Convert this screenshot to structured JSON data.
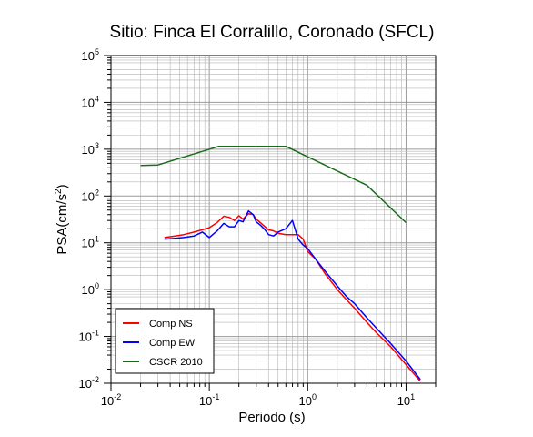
{
  "chart_data": {
    "type": "line",
    "title": "Sitio: Finca El Corralillo, Coronado (SFCL)",
    "xlabel": "Periodo (s)",
    "ylabel_main": "PSA(cm/s",
    "ylabel_sup": "2",
    "ylabel_tail": ")",
    "xscale": "log",
    "yscale": "log",
    "xlim": [
      0.01,
      20
    ],
    "ylim": [
      0.01,
      100000
    ],
    "grid": true,
    "legend_position": "bottom-left",
    "x_ticks": [
      {
        "value": 0.01,
        "base": "10",
        "exp": "-2"
      },
      {
        "value": 0.1,
        "base": "10",
        "exp": "-1"
      },
      {
        "value": 1,
        "base": "10",
        "exp": "0"
      },
      {
        "value": 10,
        "base": "10",
        "exp": "1"
      }
    ],
    "y_ticks": [
      {
        "value": 0.01,
        "base": "10",
        "exp": "-2"
      },
      {
        "value": 0.1,
        "base": "10",
        "exp": "-1"
      },
      {
        "value": 1,
        "base": "10",
        "exp": "0"
      },
      {
        "value": 10,
        "base": "10",
        "exp": "1"
      },
      {
        "value": 100,
        "base": "10",
        "exp": "2"
      },
      {
        "value": 1000,
        "base": "10",
        "exp": "3"
      },
      {
        "value": 10000,
        "base": "10",
        "exp": "4"
      },
      {
        "value": 100000,
        "base": "10",
        "exp": "5"
      }
    ],
    "series": [
      {
        "name": "Comp NS",
        "color": "#ff0000",
        "x": [
          0.035,
          0.045,
          0.055,
          0.07,
          0.085,
          0.1,
          0.12,
          0.14,
          0.16,
          0.18,
          0.2,
          0.22,
          0.25,
          0.28,
          0.3,
          0.33,
          0.36,
          0.4,
          0.45,
          0.5,
          0.6,
          0.7,
          0.8,
          0.9,
          1.0,
          1.2,
          1.5,
          2.0,
          2.5,
          3.0,
          4.0,
          5.0,
          7.0,
          10.0,
          14.0
        ],
        "y": [
          13,
          14,
          15,
          17,
          19,
          21,
          27,
          37,
          35,
          30,
          38,
          32,
          42,
          40,
          32,
          27,
          23,
          19,
          18,
          16,
          15,
          15,
          15,
          12,
          6.5,
          4.5,
          2.2,
          1.0,
          0.6,
          0.4,
          0.2,
          0.12,
          0.06,
          0.025,
          0.011
        ]
      },
      {
        "name": "Comp EW",
        "color": "#0000ff",
        "x": [
          0.035,
          0.045,
          0.055,
          0.07,
          0.085,
          0.1,
          0.12,
          0.14,
          0.16,
          0.18,
          0.2,
          0.22,
          0.25,
          0.28,
          0.3,
          0.33,
          0.36,
          0.4,
          0.45,
          0.5,
          0.6,
          0.7,
          0.8,
          0.9,
          1.0,
          1.2,
          1.5,
          2.0,
          2.5,
          3.0,
          4.0,
          5.0,
          7.0,
          10.0,
          14.0
        ],
        "y": [
          12,
          12.5,
          13,
          14,
          17,
          13,
          18,
          26,
          22,
          22,
          30,
          28,
          48,
          40,
          28,
          24,
          20,
          15,
          14,
          17,
          20,
          30,
          12,
          9,
          7.5,
          4.5,
          2.5,
          1.2,
          0.7,
          0.5,
          0.25,
          0.15,
          0.07,
          0.03,
          0.012
        ]
      },
      {
        "name": "CSCR 2010",
        "color": "#1a6b1a",
        "x": [
          0.02,
          0.03,
          0.125,
          0.6,
          4.0,
          10.0
        ],
        "y": [
          450,
          460,
          1150,
          1150,
          170,
          27
        ]
      }
    ]
  }
}
